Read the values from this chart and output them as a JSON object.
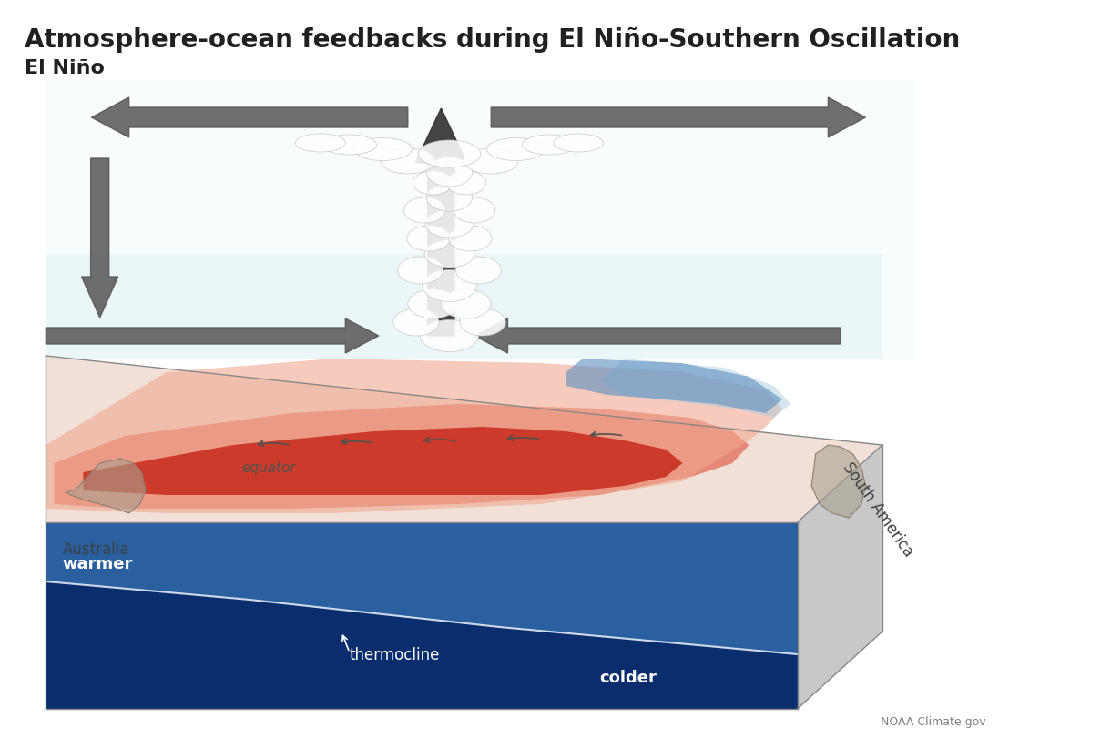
{
  "title": "Atmosphere-ocean feedbacks during El Niño-Southern Oscillation",
  "subtitle": "El Niño",
  "title_fontsize": 20,
  "subtitle_fontsize": 16,
  "bg_color": "#ffffff",
  "noaa_credit": "NOAA Climate.gov",
  "labels": {
    "australia": "Australia",
    "south_america": "South America",
    "equator": "equator",
    "warmer": "warmer",
    "thermocline": "thermocline",
    "colder": "colder"
  },
  "ocean_top_color": "#c8e4f0",
  "ocean_deep_color1": "#1a4a8a",
  "ocean_deep_color2": "#0a2d6e",
  "warm_color": "#c8402a",
  "warm_light_color": "#e8a090",
  "cool_color": "#5a8fc0",
  "cool_light_color": "#b0cce0",
  "arrow_color": "#404040",
  "side_color": "#c8c8c8"
}
